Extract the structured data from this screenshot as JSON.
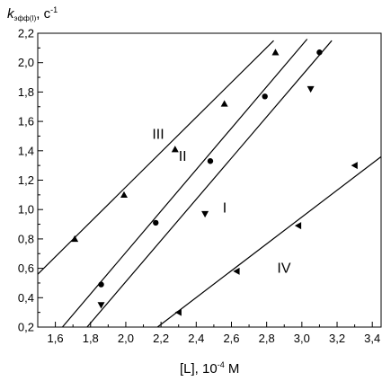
{
  "chart_data": {
    "type": "scatter",
    "ylabel": {
      "main": "k",
      "sub": "эфф(I)",
      "tail": ", c",
      "sup": "-1"
    },
    "xlabel": {
      "main": "[L], 10",
      "sup": "-4",
      "tail": " M"
    },
    "xlim": [
      1.5,
      3.45
    ],
    "ylim": [
      0.2,
      2.2
    ],
    "xticks": [
      "1,6",
      "1,8",
      "2,0",
      "2,2",
      "2,4",
      "2,6",
      "2,8",
      "3,0",
      "3,2",
      "3,4"
    ],
    "xtick_values": [
      1.6,
      1.8,
      2.0,
      2.2,
      2.4,
      2.6,
      2.8,
      3.0,
      3.2,
      3.4
    ],
    "yticks": [
      "0,2",
      "0,4",
      "0,6",
      "0,8",
      "1,0",
      "1,2",
      "1,4",
      "1,6",
      "1,8",
      "2,0",
      "2,2"
    ],
    "ytick_values": [
      0.2,
      0.4,
      0.6,
      0.8,
      1.0,
      1.2,
      1.4,
      1.6,
      1.8,
      2.0,
      2.2
    ],
    "grid": false,
    "series": [
      {
        "name": "I",
        "marker": "triangle-down",
        "points": [
          [
            1.86,
            0.35
          ],
          [
            2.45,
            0.97
          ],
          [
            3.05,
            1.82
          ]
        ],
        "fit": [
          [
            1.78,
            0.2
          ],
          [
            3.17,
            2.15
          ]
        ]
      },
      {
        "name": "II",
        "marker": "circle",
        "points": [
          [
            1.86,
            0.49
          ],
          [
            2.17,
            0.91
          ],
          [
            2.48,
            1.33
          ],
          [
            2.79,
            1.77
          ],
          [
            3.1,
            2.07
          ]
        ],
        "fit": [
          [
            1.64,
            0.2
          ],
          [
            3.03,
            2.16
          ]
        ]
      },
      {
        "name": "III",
        "marker": "triangle-up",
        "points": [
          [
            1.71,
            0.8
          ],
          [
            1.99,
            1.1
          ],
          [
            2.28,
            1.41
          ],
          [
            2.56,
            1.72
          ],
          [
            2.85,
            2.07
          ]
        ],
        "fit": [
          [
            1.5,
            0.56
          ],
          [
            2.84,
            2.15
          ]
        ]
      },
      {
        "name": "IV",
        "marker": "triangle-left",
        "points": [
          [
            2.3,
            0.3
          ],
          [
            2.63,
            0.58
          ],
          [
            2.98,
            0.89
          ],
          [
            3.3,
            1.3
          ]
        ],
        "fit": [
          [
            2.18,
            0.2
          ],
          [
            3.45,
            1.36
          ]
        ]
      }
    ],
    "series_labels": [
      {
        "text": "III",
        "x": 2.15,
        "y": 1.48
      },
      {
        "text": "II",
        "x": 2.3,
        "y": 1.33
      },
      {
        "text": "I",
        "x": 2.55,
        "y": 0.98
      },
      {
        "text": "IV",
        "x": 2.86,
        "y": 0.57
      }
    ]
  }
}
